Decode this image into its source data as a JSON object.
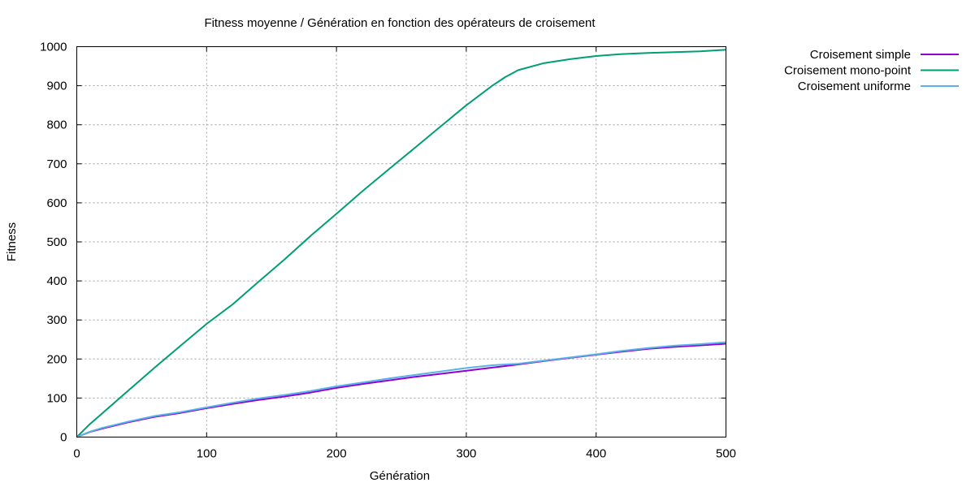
{
  "chart_data": {
    "type": "line",
    "title": "Fitness moyenne / Génération en fonction des opérateurs de croisement",
    "xlabel": "Génération",
    "ylabel": "Fitness",
    "xlim": [
      0,
      500
    ],
    "ylim": [
      0,
      1000
    ],
    "x_ticks": [
      0,
      100,
      200,
      300,
      400,
      500
    ],
    "y_ticks": [
      0,
      100,
      200,
      300,
      400,
      500,
      600,
      700,
      800,
      900,
      1000
    ],
    "x_tick_labels": [
      "0",
      "100",
      "200",
      "300",
      "400",
      "500"
    ],
    "y_tick_labels": [
      "0",
      "100",
      "200",
      "300",
      "400",
      "500",
      "600",
      "700",
      "800",
      "900",
      "1000"
    ],
    "grid": true,
    "legend_position": "outside-top-right",
    "x": [
      0,
      10,
      20,
      40,
      60,
      80,
      100,
      120,
      140,
      160,
      180,
      200,
      220,
      240,
      260,
      280,
      300,
      320,
      330,
      340,
      360,
      380,
      400,
      420,
      440,
      460,
      480,
      500
    ],
    "series": [
      {
        "name": "Croisement simple",
        "color": "#9400d3",
        "values": [
          0,
          13,
          22,
          38,
          52,
          62,
          74,
          85,
          95,
          104,
          114,
          126,
          136,
          145,
          154,
          162,
          170,
          178,
          182,
          186,
          195,
          203,
          211,
          219,
          226,
          231,
          235,
          239
        ]
      },
      {
        "name": "Croisement mono-point",
        "color": "#009e73",
        "values": [
          0,
          33,
          62,
          120,
          178,
          234,
          290,
          340,
          398,
          455,
          515,
          572,
          630,
          685,
          740,
          795,
          850,
          900,
          922,
          940,
          958,
          968,
          976,
          981,
          984,
          986,
          988,
          992
        ]
      },
      {
        "name": "Croisement uniforme",
        "color": "#56b4e9",
        "values": [
          0,
          14,
          24,
          40,
          54,
          64,
          76,
          88,
          99,
          108,
          118,
          130,
          140,
          150,
          159,
          168,
          177,
          184,
          186,
          188,
          196,
          204,
          212,
          221,
          228,
          234,
          238,
          243
        ]
      }
    ]
  }
}
